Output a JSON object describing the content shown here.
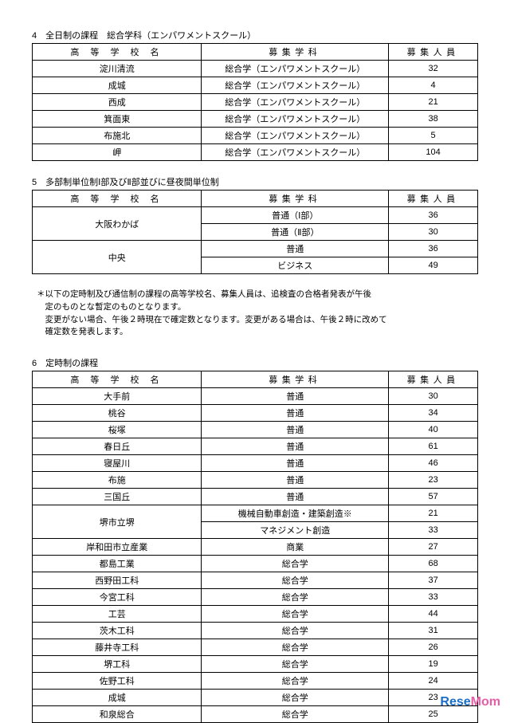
{
  "headers": {
    "school": "高 等 学 校 名",
    "dept": "募集学科",
    "capacity": "募集人員"
  },
  "section4": {
    "title": "4　全日制の課程　総合学科（エンパワメントスクール）",
    "rows": [
      {
        "school": "淀川清流",
        "dept": "総合学（エンパワメントスクール）",
        "cap": "32"
      },
      {
        "school": "成城",
        "dept": "総合学（エンパワメントスクール）",
        "cap": "4"
      },
      {
        "school": "西成",
        "dept": "総合学（エンパワメントスクール）",
        "cap": "21"
      },
      {
        "school": "箕面東",
        "dept": "総合学（エンパワメントスクール）",
        "cap": "38"
      },
      {
        "school": "布施北",
        "dept": "総合学（エンパワメントスクール）",
        "cap": "5"
      },
      {
        "school": "岬",
        "dept": "総合学（エンパワメントスクール）",
        "cap": "104"
      }
    ]
  },
  "section5": {
    "title": "5　多部制単位制Ⅰ部及びⅡ部並びに昼夜間単位制",
    "groups": [
      {
        "school": "大阪わかば",
        "rows": [
          {
            "dept": "普通（Ⅰ部）",
            "cap": "36"
          },
          {
            "dept": "普通（Ⅱ部）",
            "cap": "30"
          }
        ]
      },
      {
        "school": "中央",
        "rows": [
          {
            "dept": "普通",
            "cap": "36"
          },
          {
            "dept": "ビジネス",
            "cap": "49"
          }
        ]
      }
    ]
  },
  "note": {
    "line1": "＊以下の定時制及び通信制の課程の高等学校名、募集人員は、追検査の合格者発表が午後",
    "line2": "　定のものとな暫定のものとなります。",
    "line3": "　変更がない場合、午後２時現在で確定数となります。変更がある場合は、午後２時に改めて",
    "line4": "　確定数を発表します。"
  },
  "section6": {
    "title": "6　定時制の課程",
    "rows_pre": [
      {
        "school": "大手前",
        "dept": "普通",
        "cap": "30"
      },
      {
        "school": "桃谷",
        "dept": "普通",
        "cap": "34"
      },
      {
        "school": "桜塚",
        "dept": "普通",
        "cap": "40"
      },
      {
        "school": "春日丘",
        "dept": "普通",
        "cap": "61"
      },
      {
        "school": "寝屋川",
        "dept": "普通",
        "cap": "46"
      },
      {
        "school": "布施",
        "dept": "普通",
        "cap": "23"
      },
      {
        "school": "三国丘",
        "dept": "普通",
        "cap": "57"
      }
    ],
    "group": {
      "school": "堺市立堺",
      "rows": [
        {
          "dept": "機械自動車創造・建築創造※",
          "cap": "21"
        },
        {
          "dept": "マネジメント創造",
          "cap": "33"
        }
      ]
    },
    "rows_post": [
      {
        "school": "岸和田市立産業",
        "dept": "商業",
        "cap": "27"
      },
      {
        "school": "都島工業",
        "dept": "総合学",
        "cap": "68"
      },
      {
        "school": "西野田工科",
        "dept": "総合学",
        "cap": "37"
      },
      {
        "school": "今宮工科",
        "dept": "総合学",
        "cap": "33"
      },
      {
        "school": "工芸",
        "dept": "総合学",
        "cap": "44"
      },
      {
        "school": "茨木工科",
        "dept": "総合学",
        "cap": "31"
      },
      {
        "school": "藤井寺工科",
        "dept": "総合学",
        "cap": "26"
      },
      {
        "school": "堺工科",
        "dept": "総合学",
        "cap": "19"
      },
      {
        "school": "佐野工科",
        "dept": "総合学",
        "cap": "24"
      },
      {
        "school": "成城",
        "dept": "総合学",
        "cap": "23"
      },
      {
        "school": "和泉総合",
        "dept": "総合学",
        "cap": "25"
      }
    ]
  },
  "watermark": {
    "rese": "Rese",
    "mom": "Mom"
  }
}
